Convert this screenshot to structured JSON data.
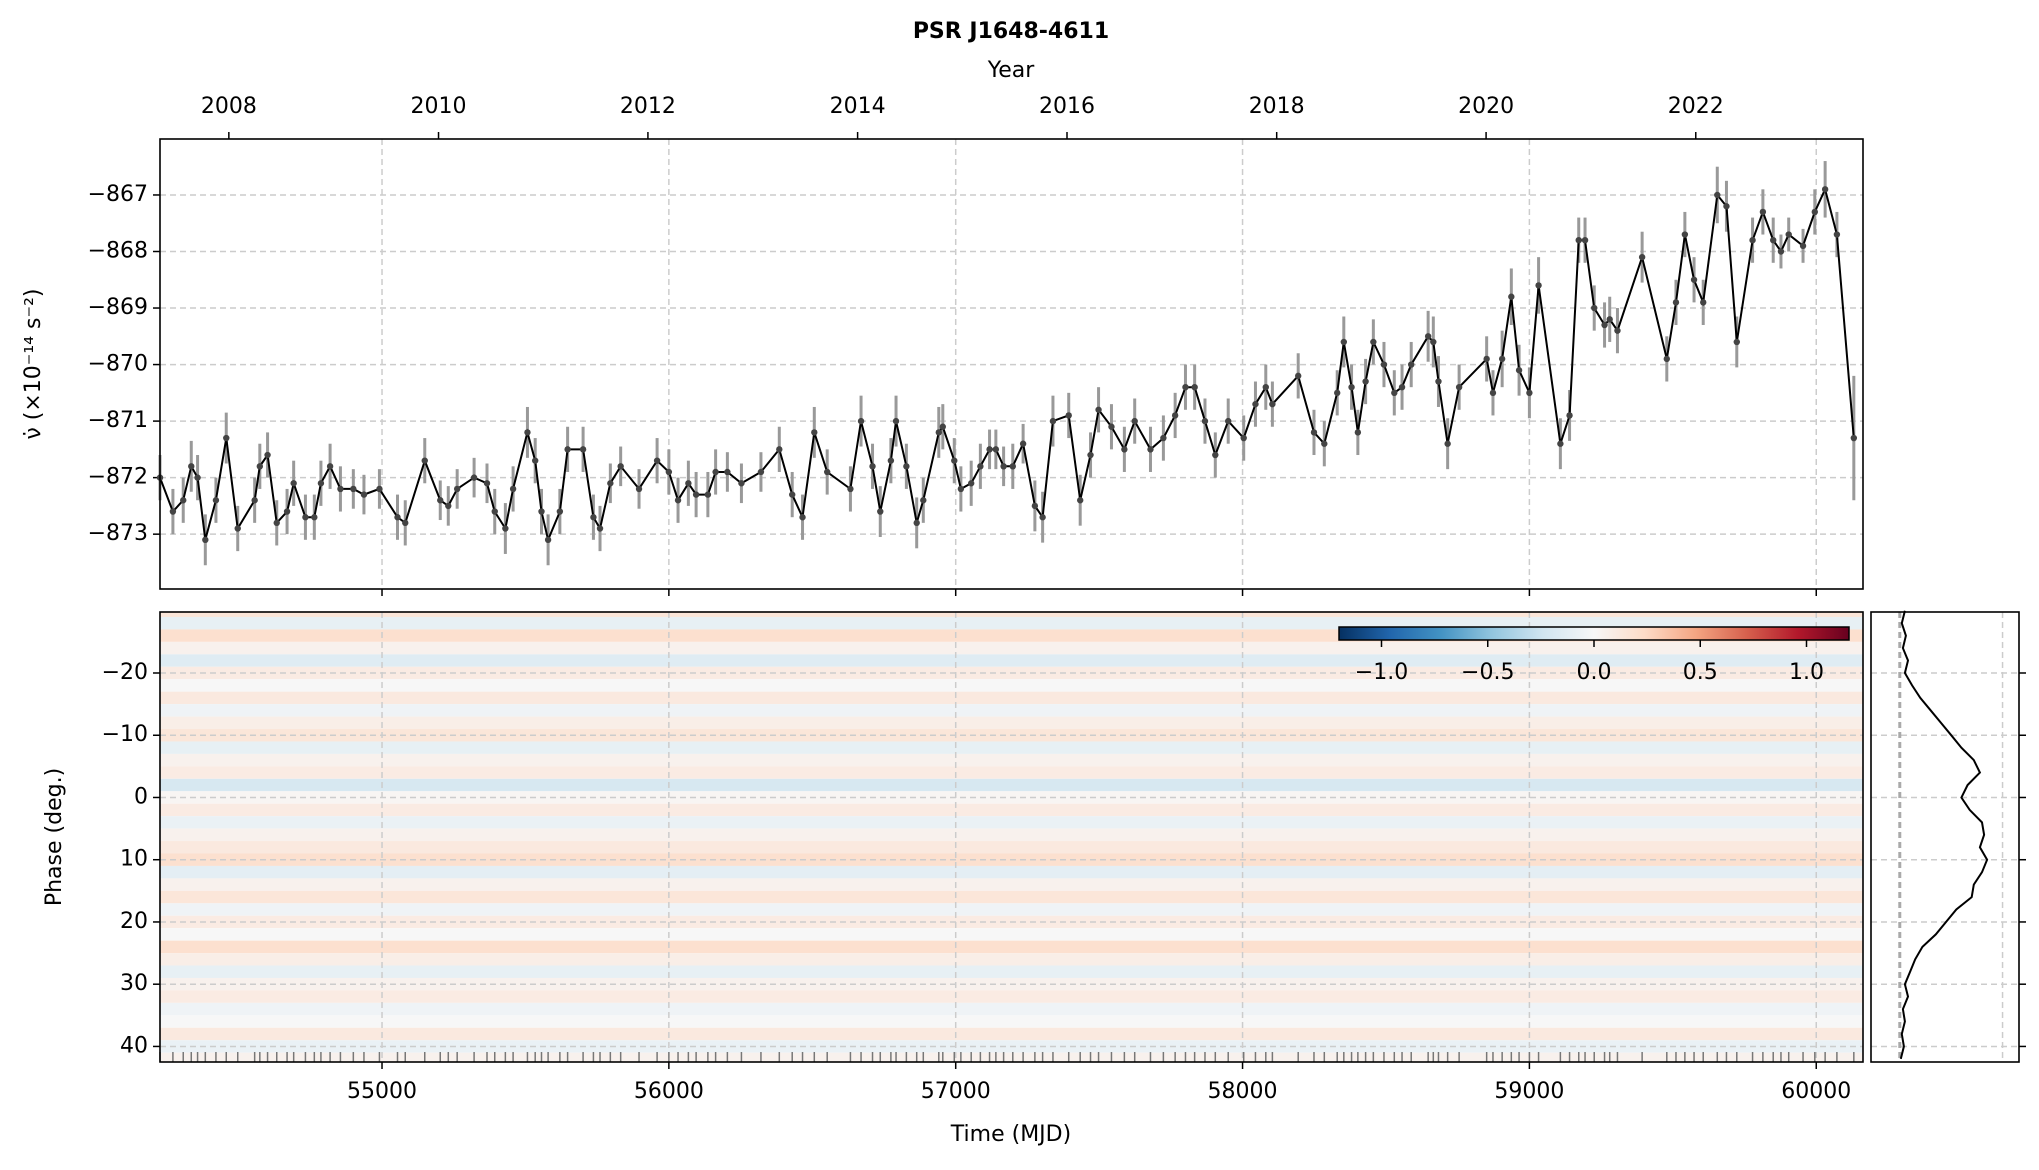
{
  "chart_data": [
    {
      "type": "line",
      "title": "PSR J1648-4611",
      "x_label": "Time (MJD)",
      "top_x_label": "Year",
      "y_label": "ν̇ (×10⁻¹⁴ s⁻²)",
      "color": "#000000",
      "error_color": "#999999",
      "grid": true,
      "x": [
        54226,
        54271,
        54307,
        54335,
        54357,
        54384,
        54421,
        54457,
        54497,
        54556,
        54574,
        54601,
        54633,
        54669,
        54692,
        54733,
        54764,
        54787,
        54819,
        54855,
        54900,
        54937,
        54991,
        55054,
        55081,
        55149,
        55203,
        55231,
        55262,
        55321,
        55366,
        55393,
        55430,
        55457,
        55507,
        55534,
        55556,
        55579,
        55620,
        55647,
        55701,
        55737,
        55760,
        55796,
        55832,
        55896,
        55959,
        56000,
        56032,
        56068,
        56095,
        56136,
        56163,
        56204,
        56253,
        56321,
        56385,
        56430,
        56466,
        56507,
        56552,
        56633,
        56670,
        56710,
        56737,
        56774,
        56792,
        56828,
        56864,
        56887,
        56941,
        56955,
        56995,
        57018,
        57054,
        57086,
        57118,
        57140,
        57167,
        57199,
        57235,
        57276,
        57303,
        57339,
        57394,
        57434,
        57470,
        57498,
        57543,
        57588,
        57624,
        57679,
        57724,
        57765,
        57801,
        57833,
        57869,
        57905,
        57950,
        58004,
        58045,
        58081,
        58104,
        58194,
        58249,
        58285,
        58330,
        58353,
        58380,
        58402,
        58429,
        58456,
        58493,
        58529,
        58556,
        58588,
        58647,
        58665,
        58683,
        58715,
        58755,
        58851,
        58873,
        58905,
        58937,
        58964,
        59000,
        59032,
        59108,
        59140,
        59172,
        59194,
        59226,
        59262,
        59280,
        59307,
        59393,
        59479,
        59511,
        59542,
        59574,
        59606,
        59655,
        59687,
        59723,
        59778,
        59814,
        59850,
        59877,
        59904,
        59954,
        59995,
        60031,
        60072,
        60131
      ],
      "values": [
        -872.0,
        -872.6,
        -872.4,
        -871.8,
        -872.0,
        -873.1,
        -872.4,
        -871.3,
        -872.9,
        -872.4,
        -871.8,
        -871.6,
        -872.8,
        -872.6,
        -872.1,
        -872.7,
        -872.7,
        -872.1,
        -871.8,
        -872.2,
        -872.2,
        -872.3,
        -872.2,
        -872.7,
        -872.8,
        -871.7,
        -872.4,
        -872.5,
        -872.2,
        -872.0,
        -872.1,
        -872.6,
        -872.9,
        -872.2,
        -871.2,
        -871.7,
        -872.6,
        -873.1,
        -872.6,
        -871.5,
        -871.5,
        -872.7,
        -872.9,
        -872.1,
        -871.8,
        -872.2,
        -871.7,
        -871.9,
        -872.4,
        -872.1,
        -872.3,
        -872.3,
        -871.9,
        -871.9,
        -872.1,
        -871.9,
        -871.5,
        -872.3,
        -872.7,
        -871.2,
        -871.9,
        -872.2,
        -871.0,
        -871.8,
        -872.6,
        -871.7,
        -871.0,
        -871.8,
        -872.8,
        -872.4,
        -871.2,
        -871.1,
        -871.7,
        -872.2,
        -872.1,
        -871.8,
        -871.5,
        -871.5,
        -871.8,
        -871.8,
        -871.4,
        -872.5,
        -872.7,
        -871.0,
        -870.9,
        -872.4,
        -871.6,
        -870.8,
        -871.1,
        -871.5,
        -871.0,
        -871.5,
        -871.3,
        -870.9,
        -870.4,
        -870.4,
        -871.0,
        -871.6,
        -871.0,
        -871.3,
        -870.7,
        -870.4,
        -870.7,
        -870.2,
        -871.2,
        -871.4,
        -870.5,
        -869.6,
        -870.4,
        -871.2,
        -870.3,
        -869.6,
        -870.0,
        -870.5,
        -870.4,
        -870.0,
        -869.5,
        -869.6,
        -870.3,
        -871.4,
        -870.4,
        -869.9,
        -870.5,
        -869.9,
        -868.8,
        -870.1,
        -870.5,
        -868.6,
        -871.4,
        -870.9,
        -867.8,
        -867.8,
        -869.0,
        -869.3,
        -869.2,
        -869.4,
        -868.1,
        -869.9,
        -868.9,
        -867.7,
        -868.5,
        -868.9,
        -867.0,
        -867.2,
        -869.6,
        -867.8,
        -867.3,
        -867.8,
        -868.0,
        -867.7,
        -867.9,
        -867.3,
        -866.9,
        -867.7,
        -871.3
      ],
      "errors": [
        0.4,
        0.4,
        0.4,
        0.45,
        0.4,
        0.45,
        0.4,
        0.45,
        0.4,
        0.4,
        0.4,
        0.4,
        0.4,
        0.4,
        0.4,
        0.4,
        0.4,
        0.4,
        0.4,
        0.4,
        0.35,
        0.35,
        0.35,
        0.4,
        0.4,
        0.4,
        0.35,
        0.35,
        0.35,
        0.35,
        0.35,
        0.4,
        0.45,
        0.4,
        0.45,
        0.4,
        0.4,
        0.45,
        0.4,
        0.4,
        0.4,
        0.4,
        0.4,
        0.35,
        0.35,
        0.35,
        0.4,
        0.4,
        0.4,
        0.4,
        0.4,
        0.4,
        0.4,
        0.35,
        0.35,
        0.35,
        0.4,
        0.4,
        0.4,
        0.45,
        0.4,
        0.4,
        0.45,
        0.4,
        0.45,
        0.4,
        0.45,
        0.4,
        0.45,
        0.4,
        0.45,
        0.4,
        0.4,
        0.4,
        0.4,
        0.4,
        0.35,
        0.35,
        0.35,
        0.4,
        0.35,
        0.45,
        0.45,
        0.45,
        0.4,
        0.45,
        0.4,
        0.4,
        0.4,
        0.4,
        0.4,
        0.4,
        0.4,
        0.4,
        0.4,
        0.4,
        0.4,
        0.4,
        0.4,
        0.4,
        0.4,
        0.4,
        0.4,
        0.4,
        0.4,
        0.4,
        0.4,
        0.45,
        0.4,
        0.4,
        0.4,
        0.4,
        0.4,
        0.4,
        0.4,
        0.4,
        0.45,
        0.45,
        0.45,
        0.45,
        0.4,
        0.4,
        0.4,
        0.5,
        0.5,
        0.45,
        0.45,
        0.5,
        0.45,
        0.45,
        0.4,
        0.4,
        0.4,
        0.4,
        0.4,
        0.4,
        0.45,
        0.4,
        0.4,
        0.4,
        0.4,
        0.4,
        0.5,
        0.45,
        0.45,
        0.4,
        0.4,
        0.4,
        0.3,
        0.3,
        0.3,
        0.4,
        0.5,
        0.4,
        1.1
      ],
      "xlim": [
        54226,
        60163
      ],
      "xticks": [
        55000,
        56000,
        57000,
        58000,
        59000,
        60000
      ],
      "top_xticks": [
        {
          "value": 54466,
          "label": "2008"
        },
        {
          "value": 55197,
          "label": "2010"
        },
        {
          "value": 55927,
          "label": "2012"
        },
        {
          "value": 56658,
          "label": "2014"
        },
        {
          "value": 57388,
          "label": "2016"
        },
        {
          "value": 58119,
          "label": "2018"
        },
        {
          "value": 58849,
          "label": "2020"
        },
        {
          "value": 59580,
          "label": "2022"
        }
      ],
      "ylim": [
        -873.97,
        -866.01
      ],
      "yticks": [
        {
          "value": -873,
          "label": "−873"
        },
        {
          "value": -872,
          "label": "−872"
        },
        {
          "value": -871,
          "label": "−871"
        },
        {
          "value": -870,
          "label": "−870"
        },
        {
          "value": -869,
          "label": "−869"
        },
        {
          "value": -868,
          "label": "−868"
        },
        {
          "value": -867,
          "label": "−867"
        }
      ]
    },
    {
      "type": "heatmap",
      "y_label": "Phase (deg.)",
      "y_inverted": true,
      "phase": [
        -30,
        -28,
        -26,
        -24,
        -22,
        -20,
        -18,
        -16,
        -14,
        -12,
        -10,
        -8,
        -6,
        -4,
        -2,
        0,
        2,
        4,
        6,
        8,
        10,
        12,
        14,
        16,
        18,
        20,
        22,
        24,
        26,
        28,
        30,
        32,
        34,
        36,
        38,
        40,
        42
      ],
      "values": [
        0.15,
        -0.1,
        0.2,
        0.05,
        -0.15,
        0.1,
        0.0,
        0.12,
        -0.05,
        0.08,
        0.15,
        -0.1,
        0.05,
        0.1,
        -0.2,
        0.02,
        0.1,
        -0.08,
        0.05,
        0.12,
        0.2,
        -0.12,
        0.05,
        0.15,
        -0.05,
        0.1,
        0.0,
        0.2,
        0.08,
        -0.1,
        0.05,
        0.1,
        -0.05,
        0.0,
        0.12,
        -0.08,
        0.05
      ],
      "ylim": [
        -29.8,
        42.5
      ],
      "yticks": [
        {
          "value": -20,
          "label": "−20"
        },
        {
          "value": -10,
          "label": "−10"
        },
        0,
        10,
        20,
        30,
        40
      ],
      "clim": [
        -1.2,
        1.2
      ],
      "cticks": [
        {
          "value": -1,
          "label": "−1.0"
        },
        {
          "value": -0.5,
          "label": "−0.5"
        },
        {
          "value": 0,
          "label": "0.0"
        },
        0.5,
        {
          "value": 1,
          "label": "1.0"
        }
      ],
      "colormap": [
        "#053061",
        "#2166ac",
        "#4393c3",
        "#92c5de",
        "#d1e5f0",
        "#f7f7f7",
        "#fddbc7",
        "#f4a582",
        "#d6604d",
        "#b2182b",
        "#67001f"
      ]
    },
    {
      "type": "profile",
      "color": "#000000",
      "values": [
        0.05,
        0.02,
        0.06,
        0.03,
        0.08,
        0.05,
        0.12,
        0.2,
        0.3,
        0.4,
        0.5,
        0.6,
        0.72,
        0.78,
        0.66,
        0.6,
        0.68,
        0.8,
        0.82,
        0.78,
        0.85,
        0.8,
        0.72,
        0.7,
        0.55,
        0.45,
        0.35,
        0.22,
        0.15,
        0.1,
        0.05,
        0.08,
        0.03,
        0.05,
        0.02,
        0.04,
        0.01
      ],
      "xlim": [
        -0.28,
        1.16
      ],
      "xticks": [
        0,
        1
      ]
    }
  ]
}
